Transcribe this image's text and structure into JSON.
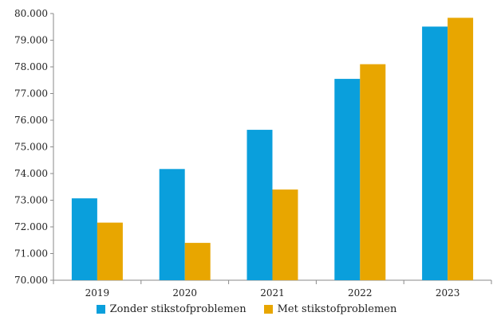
{
  "chart_data": {
    "type": "bar",
    "categories": [
      "2019",
      "2020",
      "2021",
      "2022",
      "2023"
    ],
    "series": [
      {
        "name": "Zonder stikstofproblemen",
        "color": "#0a9fdc",
        "values": [
          73070,
          74170,
          75640,
          77550,
          79510
        ]
      },
      {
        "name": "Met stikstofproblemen",
        "color": "#e8a600",
        "values": [
          72160,
          71400,
          73400,
          78100,
          79840
        ]
      }
    ],
    "ylim": [
      70000,
      80000
    ],
    "yticks": [
      "70.000",
      "71.000",
      "72.000",
      "73.000",
      "74.000",
      "75.000",
      "76.000",
      "77.000",
      "78.000",
      "79.000",
      "80.000"
    ],
    "title": "",
    "xlabel": "",
    "ylabel": "",
    "grid": false,
    "legend_position": "bottom"
  }
}
